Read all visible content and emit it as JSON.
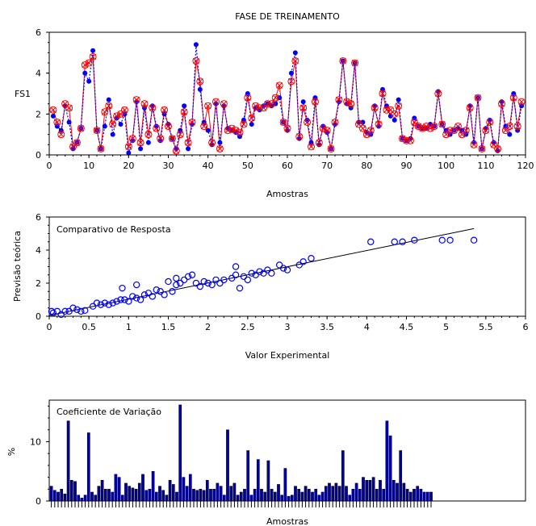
{
  "chart_data": [
    {
      "type": "line",
      "title": "FASE DE TREINAMENTO",
      "xlabel": "Amostras",
      "ylabel": "FS1",
      "xlim": [
        0,
        120
      ],
      "ylim": [
        0,
        6
      ],
      "xticks": [
        "0",
        "10",
        "20",
        "30",
        "40",
        "50",
        "60",
        "70",
        "80",
        "90",
        "100",
        "110",
        "120"
      ],
      "yticks": [
        "0",
        "2",
        "4",
        "6"
      ],
      "series": [
        {
          "name": "",
          "color": "#0000ff",
          "marker": "dot",
          "x": [
            1,
            2,
            3,
            4,
            5,
            6,
            7,
            8,
            9,
            10,
            11,
            12,
            13,
            14,
            15,
            16,
            17,
            18,
            19,
            20,
            21,
            22,
            23,
            24,
            25,
            26,
            27,
            28,
            29,
            30,
            31,
            32,
            33,
            34,
            35,
            36,
            37,
            38,
            39,
            40,
            41,
            42,
            43,
            44,
            45,
            46,
            47,
            48,
            49,
            50,
            51,
            52,
            53,
            54,
            55,
            56,
            57,
            58,
            59,
            60,
            61,
            62,
            63,
            64,
            65,
            66,
            67,
            68,
            69,
            70,
            71,
            72,
            73,
            74,
            75,
            76,
            77,
            78,
            79,
            80,
            81,
            82,
            83,
            84,
            85,
            86,
            87,
            88,
            89,
            90,
            91,
            92,
            93,
            94,
            95,
            96,
            97,
            98,
            99,
            100,
            101,
            102,
            103,
            104,
            105,
            106,
            107,
            108,
            109,
            110,
            111,
            112,
            113,
            114,
            115,
            116,
            117,
            118,
            119
          ],
          "values": [
            1.9,
            1.4,
            1.2,
            2.4,
            1.6,
            0.3,
            0.6,
            1.3,
            4.0,
            3.6,
            5.1,
            1.2,
            0.3,
            1.4,
            2.7,
            1.0,
            1.8,
            1.5,
            2.0,
            0.1,
            0.7,
            2.6,
            0.3,
            2.3,
            0.6,
            2.4,
            1.4,
            0.7,
            2.0,
            1.5,
            0.8,
            0.3,
            1.2,
            2.4,
            0.3,
            1.5,
            5.4,
            3.2,
            1.6,
            1.2,
            0.5,
            2.5,
            0.6,
            2.4,
            1.3,
            1.2,
            1.1,
            0.9,
            1.7,
            3.0,
            1.5,
            2.3,
            2.2,
            2.4,
            2.5,
            2.4,
            2.5,
            2.8,
            1.6,
            1.2,
            4.0,
            5.0,
            0.8,
            2.6,
            1.7,
            0.6,
            2.8,
            0.5,
            1.4,
            1.1,
            0.3,
            1.5,
            2.6,
            4.6,
            2.5,
            2.3,
            4.5,
            1.6,
            1.6,
            1.1,
            1.0,
            2.4,
            1.4,
            3.2,
            2.4,
            1.9,
            1.7,
            2.7,
            0.8,
            0.7,
            0.8,
            1.8,
            1.4,
            1.3,
            1.3,
            1.5,
            1.4,
            3.1,
            1.5,
            1.2,
            1.0,
            1.2,
            1.3,
            1.2,
            1.0,
            2.4,
            0.6,
            2.8,
            0.3,
            1.3,
            1.7,
            0.6,
            0.2,
            2.6,
            1.4,
            1.0,
            3.0,
            1.2,
            2.4
          ]
        },
        {
          "name": "",
          "color": "#ff0000",
          "marker": "x-circle",
          "x": [
            1,
            2,
            3,
            4,
            5,
            6,
            7,
            8,
            9,
            10,
            11,
            12,
            13,
            14,
            15,
            16,
            17,
            18,
            19,
            20,
            21,
            22,
            23,
            24,
            25,
            26,
            27,
            28,
            29,
            30,
            31,
            32,
            33,
            34,
            35,
            36,
            37,
            38,
            39,
            40,
            41,
            42,
            43,
            44,
            45,
            46,
            47,
            48,
            49,
            50,
            51,
            52,
            53,
            54,
            55,
            56,
            57,
            58,
            59,
            60,
            61,
            62,
            63,
            64,
            65,
            66,
            67,
            68,
            69,
            70,
            71,
            72,
            73,
            74,
            75,
            76,
            77,
            78,
            79,
            80,
            81,
            82,
            83,
            84,
            85,
            86,
            87,
            88,
            89,
            90,
            91,
            92,
            93,
            94,
            95,
            96,
            97,
            98,
            99,
            100,
            101,
            102,
            103,
            104,
            105,
            106,
            107,
            108,
            109,
            110,
            111,
            112,
            113,
            114,
            115,
            116,
            117,
            118,
            119
          ],
          "values": [
            2.2,
            1.6,
            1.0,
            2.5,
            2.3,
            0.4,
            0.6,
            1.3,
            4.4,
            4.5,
            4.8,
            1.2,
            0.3,
            2.1,
            2.4,
            1.5,
            1.9,
            2.0,
            2.2,
            0.4,
            0.8,
            2.7,
            0.6,
            2.5,
            1.0,
            2.3,
            1.3,
            0.8,
            2.2,
            1.4,
            0.8,
            0.2,
            1.0,
            2.1,
            0.6,
            1.6,
            4.6,
            3.6,
            1.4,
            2.4,
            0.6,
            2.6,
            0.3,
            2.5,
            1.2,
            1.3,
            1.2,
            1.1,
            1.5,
            2.8,
            1.8,
            2.4,
            2.3,
            2.3,
            2.5,
            2.5,
            2.8,
            3.4,
            1.6,
            1.3,
            3.6,
            4.6,
            0.9,
            2.3,
            1.6,
            0.4,
            2.6,
            0.6,
            1.3,
            1.2,
            0.3,
            1.6,
            2.7,
            4.6,
            2.6,
            2.5,
            4.5,
            1.5,
            1.3,
            1.0,
            1.2,
            2.3,
            1.5,
            3.0,
            2.2,
            2.2,
            2.0,
            2.4,
            0.8,
            0.7,
            0.7,
            1.6,
            1.4,
            1.3,
            1.4,
            1.3,
            1.4,
            3.0,
            1.5,
            1.0,
            1.2,
            1.2,
            1.4,
            1.0,
            1.2,
            2.3,
            0.5,
            2.8,
            0.3,
            1.2,
            1.6,
            0.5,
            0.3,
            2.5,
            1.2,
            1.4,
            2.8,
            1.4,
            2.6
          ]
        }
      ]
    },
    {
      "type": "scatter",
      "title": "Comparativo de Resposta",
      "xlabel": "Valor Experimental",
      "ylabel": "Previsão teórica",
      "xlim": [
        0,
        6
      ],
      "ylim": [
        0,
        6
      ],
      "xticks": [
        "0",
        "0.5",
        "1",
        "1.5",
        "2",
        "2.5",
        "3",
        "3.5",
        "4",
        "4.5",
        "5",
        "5.5",
        "6"
      ],
      "yticks": [
        "0",
        "2",
        "4",
        "6"
      ],
      "grid": false,
      "fit_line": {
        "x": [
          0.0,
          5.35
        ],
        "y": [
          0.05,
          5.3
        ]
      },
      "points": {
        "x": [
          0.03,
          0.05,
          0.1,
          0.15,
          0.2,
          0.25,
          0.3,
          0.35,
          0.4,
          0.45,
          0.55,
          0.6,
          0.65,
          0.7,
          0.75,
          0.8,
          0.85,
          0.9,
          0.92,
          0.95,
          1.0,
          1.05,
          1.1,
          1.1,
          1.15,
          1.2,
          1.25,
          1.3,
          1.35,
          1.4,
          1.45,
          1.5,
          1.55,
          1.6,
          1.6,
          1.65,
          1.7,
          1.75,
          1.8,
          1.85,
          1.9,
          1.95,
          2.0,
          2.05,
          2.1,
          2.15,
          2.2,
          2.3,
          2.35,
          2.35,
          2.4,
          2.45,
          2.5,
          2.55,
          2.6,
          2.65,
          2.7,
          2.75,
          2.8,
          2.9,
          2.95,
          3.0,
          3.15,
          3.2,
          3.3,
          4.05,
          4.35,
          4.45,
          4.6,
          4.95,
          5.05,
          5.35
        ],
        "y": [
          0.3,
          0.2,
          0.3,
          0.1,
          0.3,
          0.3,
          0.5,
          0.4,
          0.3,
          0.35,
          0.6,
          0.8,
          0.7,
          0.8,
          0.7,
          0.8,
          0.9,
          1.0,
          1.7,
          1.0,
          0.9,
          1.2,
          1.9,
          1.1,
          1.0,
          1.3,
          1.4,
          1.2,
          1.6,
          1.5,
          1.3,
          2.1,
          1.5,
          2.3,
          1.9,
          2.0,
          2.2,
          2.4,
          2.5,
          2.0,
          1.8,
          2.1,
          2.0,
          1.9,
          2.2,
          2.0,
          2.2,
          2.3,
          3.0,
          2.5,
          1.7,
          2.4,
          2.2,
          2.6,
          2.5,
          2.7,
          2.6,
          2.8,
          2.6,
          3.1,
          2.9,
          2.8,
          3.1,
          3.3,
          3.5,
          4.5,
          4.5,
          4.5,
          4.6,
          4.6,
          4.6,
          4.6
        ]
      }
    },
    {
      "type": "bar",
      "title": "Coeficiente de Variação",
      "xlabel": "Amostras",
      "ylabel": "%",
      "ylim": [
        0,
        17
      ],
      "yticks": [
        "0",
        "10"
      ],
      "xlim": [
        0,
        119
      ],
      "bar_color": "#0000aa",
      "values": [
        2.5,
        1.8,
        1.5,
        2.0,
        1.2,
        13.5,
        3.5,
        3.3,
        1.0,
        0.5,
        1.0,
        11.5,
        1.5,
        1.0,
        2.5,
        3.5,
        2.0,
        2.0,
        1.5,
        4.5,
        4.0,
        1.0,
        3.0,
        2.5,
        2.2,
        2.0,
        3.0,
        4.5,
        1.8,
        2.0,
        5.0,
        1.5,
        2.5,
        1.8,
        1.0,
        3.5,
        2.8,
        1.5,
        16.2,
        4.0,
        2.5,
        4.5,
        2.0,
        1.8,
        2.0,
        1.8,
        3.5,
        2.0,
        2.0,
        3.0,
        2.5,
        1.0,
        12.0,
        2.5,
        3.0,
        1.0,
        1.5,
        2.0,
        8.5,
        1.0,
        2.0,
        7.0,
        2.0,
        1.5,
        6.8,
        2.0,
        1.5,
        2.8,
        1.0,
        5.5,
        0.8,
        1.0,
        2.5,
        2.0,
        1.5,
        2.5,
        2.0,
        1.5,
        2.0,
        1.0,
        1.5,
        2.5,
        3.0,
        2.5,
        3.0,
        2.5,
        8.5,
        2.5,
        1.0,
        2.0,
        3.0,
        2.0,
        4.0,
        3.5,
        3.5,
        4.0,
        2.0,
        3.5,
        2.0,
        13.5,
        11.0,
        3.5,
        3.0,
        8.5,
        3.0,
        2.0,
        1.5,
        2.0,
        2.5,
        2.0,
        1.5,
        1.5,
        1.5
      ]
    }
  ]
}
